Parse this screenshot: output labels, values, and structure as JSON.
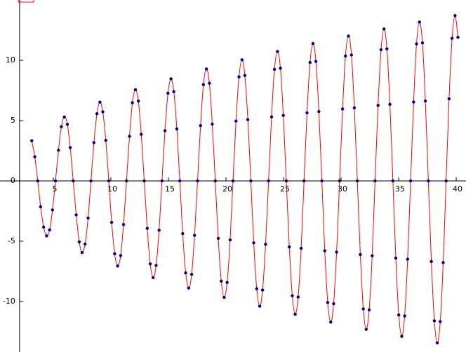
{
  "chart_data": {
    "type": "line",
    "x": [
      3.13,
      3.39,
      3.65,
      3.9,
      4.16,
      4.42,
      4.68,
      4.93,
      5.19,
      5.45,
      5.7,
      5.96,
      6.22,
      6.47,
      6.73,
      6.99,
      7.25,
      7.5,
      7.76,
      8.02,
      8.27,
      8.53,
      8.79,
      9.05,
      9.3,
      9.56,
      9.82,
      10.07,
      10.33,
      10.59,
      10.85,
      11.1,
      11.36,
      11.62,
      11.87,
      12.13,
      12.39,
      12.64,
      12.9,
      13.16,
      13.42,
      13.67,
      13.93,
      14.19,
      14.44,
      14.7,
      14.96,
      15.22,
      15.47,
      15.73,
      15.99,
      16.24,
      16.5,
      16.76,
      17.02,
      17.27,
      17.53,
      17.79,
      18.04,
      18.3,
      18.56,
      18.81,
      19.07,
      19.33,
      19.59,
      19.84,
      20.1,
      20.36,
      20.61,
      20.87,
      21.13,
      21.39,
      21.64,
      21.9,
      22.16,
      22.41,
      22.67,
      22.93,
      23.18,
      23.44,
      23.7,
      23.96,
      24.21,
      24.47,
      24.73,
      24.98,
      25.24,
      25.5,
      25.76,
      26.01,
      26.27,
      26.53,
      26.78,
      27.04,
      27.3,
      27.56,
      27.81,
      28.07,
      28.33,
      28.58,
      28.84,
      29.1,
      29.35,
      29.61,
      29.87,
      30.13,
      30.38,
      30.64,
      30.9,
      31.15,
      31.41,
      31.67,
      31.93,
      32.18,
      32.44,
      32.7,
      32.95,
      33.21,
      33.47,
      33.73,
      33.98,
      34.24,
      34.5,
      34.75,
      35.01,
      35.27,
      35.52,
      35.78,
      36.04,
      36.3,
      36.55,
      36.81,
      37.07,
      37.32,
      37.58,
      37.84,
      38.1,
      38.35,
      38.61,
      38.87,
      39.12,
      39.38,
      39.64,
      39.9,
      40.15
    ],
    "values": [
      3.33,
      2.0,
      0,
      -2.15,
      -3.83,
      -4.56,
      -4.06,
      -2.41,
      0,
      2.54,
      4.49,
      5.3,
      4.69,
      2.76,
      0,
      -2.82,
      -5.06,
      -5.94,
      -5.24,
      -3.08,
      0,
      3.17,
      5.57,
      6.53,
      5.73,
      3.36,
      0,
      -3.44,
      -6.04,
      -7.06,
      -6.19,
      -3.62,
      0,
      3.7,
      6.48,
      7.56,
      6.62,
      3.86,
      0,
      -3.94,
      -6.88,
      -8.02,
      -7.01,
      -4.09,
      0,
      4.16,
      7.27,
      8.46,
      7.4,
      4.31,
      0,
      -4.37,
      -7.63,
      -8.88,
      -7.75,
      -4.51,
      0,
      4.58,
      7.98,
      9.28,
      8.1,
      4.71,
      0,
      -4.77,
      -8.31,
      -9.66,
      -8.42,
      -4.9,
      0,
      4.96,
      8.63,
      10.04,
      8.74,
      5.08,
      0,
      -5.14,
      -8.95,
      -10.39,
      -9.05,
      -5.26,
      0,
      5.31,
      9.25,
      10.73,
      9.34,
      5.43,
      0,
      -5.48,
      -9.53,
      -11.06,
      -9.63,
      -5.59,
      0,
      5.64,
      9.82,
      11.39,
      9.91,
      5.75,
      0,
      -5.8,
      -10.09,
      -11.71,
      -10.18,
      -5.91,
      0,
      5.96,
      10.36,
      12.01,
      10.44,
      6.06,
      0,
      -6.11,
      -10.62,
      -12.31,
      -10.7,
      -6.21,
      0,
      6.26,
      10.88,
      12.6,
      10.95,
      6.35,
      0,
      -6.4,
      -11.12,
      -12.89,
      -11.2,
      -6.49,
      0,
      6.54,
      11.36,
      13.17,
      11.44,
      6.63,
      0,
      -6.68,
      -11.6,
      -13.44,
      -11.67,
      -6.77,
      0,
      6.81,
      11.83,
      13.71,
      11.91
    ],
    "line_color": "#ff0000",
    "point_color": "#00008b",
    "xlim": [
      0.37,
      40.85
    ],
    "ylim": [
      -14.19,
      15.0
    ],
    "xticks": [
      5,
      10,
      15,
      20,
      25,
      30,
      35,
      40
    ],
    "yticks": [
      -10,
      -5,
      0,
      5,
      10
    ],
    "yaxis_at": 2.07
  }
}
